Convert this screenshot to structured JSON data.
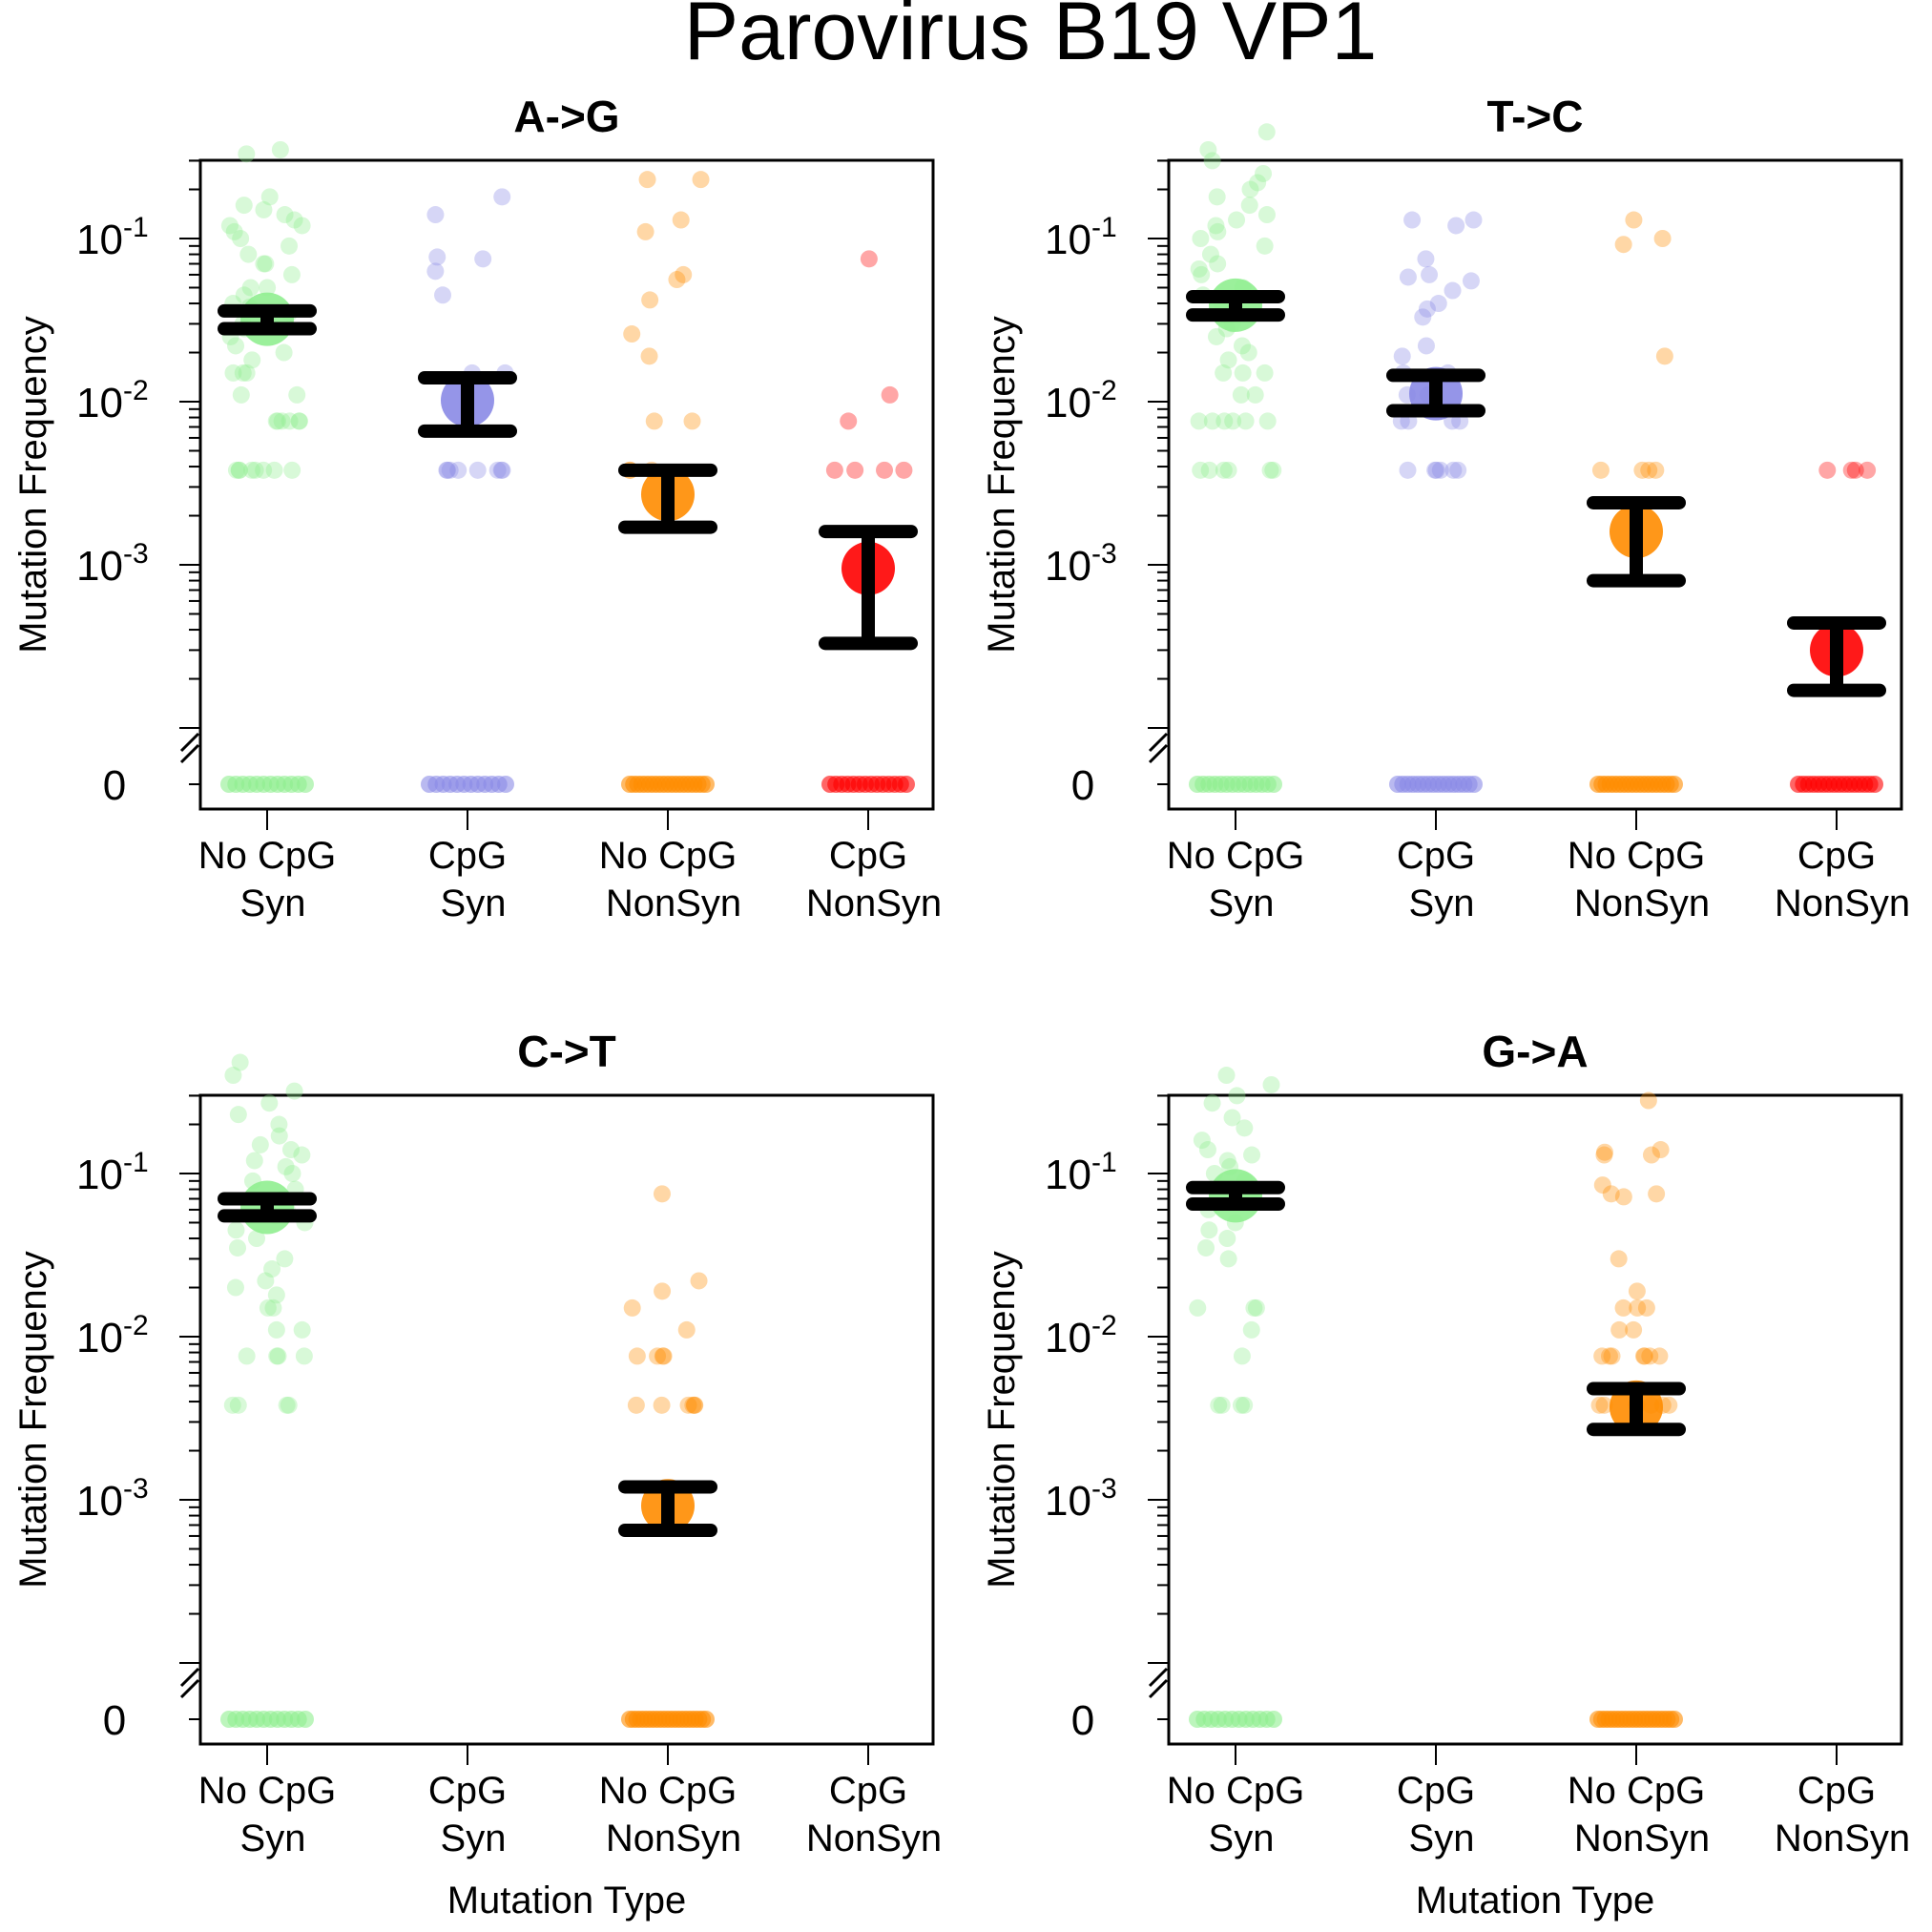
{
  "figure": {
    "title": "Parovirus B19 VP1"
  },
  "chart_data": [
    {
      "type": "scatter",
      "title": "A->G",
      "xlabel": "",
      "ylabel": "Mutation Frequency",
      "yscale": "log",
      "ylim": [
        0.0002,
        0.7
      ],
      "zero_row": "0",
      "y_ticks": [
        {
          "base": "10",
          "exp": "-1"
        },
        {
          "base": "10",
          "exp": "-2"
        },
        {
          "base": "10",
          "exp": "-3"
        }
      ],
      "categories": [
        [
          "No CpG",
          "Syn"
        ],
        [
          "CpG",
          "Syn"
        ],
        [
          "No CpG",
          "NonSyn"
        ],
        [
          "CpG",
          "NonSyn"
        ]
      ],
      "series": [
        {
          "category": 0,
          "color": "#90ee90",
          "mean": 0.032,
          "ci": [
            0.028,
            0.036
          ],
          "points": [
            0.35,
            0.33,
            0.18,
            0.16,
            0.15,
            0.14,
            0.13,
            0.12,
            0.12,
            0.11,
            0.1,
            0.09,
            0.08,
            0.07,
            0.07,
            0.06,
            0.05,
            0.05,
            0.045,
            0.04,
            0.038,
            0.035,
            0.03,
            0.028,
            0.025,
            0.022,
            0.02,
            0.018,
            0.015,
            0.015,
            0.015,
            0.011,
            0.011,
            0.0076,
            0.0076,
            0.0076,
            0.0076,
            0.0076,
            0.0076,
            0.0038,
            0.0038,
            0.0038,
            0.0038,
            0.0038,
            0.0038,
            0.0038,
            0.0038
          ],
          "zeros": 12
        },
        {
          "category": 1,
          "color": "#8a8ae6",
          "mean": 0.0102,
          "ci": [
            0.0066,
            0.014
          ],
          "points": [
            0.18,
            0.14,
            0.077,
            0.075,
            0.063,
            0.045,
            0.015,
            0.015,
            0.0038,
            0.0038,
            0.0038,
            0.0038,
            0.0038,
            0.0038,
            0.0038,
            0.0038
          ],
          "zeros": 12
        },
        {
          "category": 2,
          "color": "#ff8c00",
          "mean": 0.0027,
          "ci": [
            0.0017,
            0.0038
          ],
          "points": [
            0.23,
            0.23,
            0.13,
            0.11,
            0.06,
            0.056,
            0.042,
            0.026,
            0.019,
            0.0076,
            0.0076,
            0.0038,
            0.0038,
            0.0038
          ],
          "zeros": 20
        },
        {
          "category": 3,
          "color": "#ff0000",
          "mean": 0.00095,
          "ci": [
            0.00033,
            0.0016
          ],
          "points": [
            0.075,
            0.011,
            0.0076,
            0.0038,
            0.0038,
            0.0038,
            0.0038
          ],
          "zeros": 14
        }
      ]
    },
    {
      "type": "scatter",
      "title": "T->C",
      "xlabel": "",
      "ylabel": "Mutation Frequency",
      "yscale": "log",
      "ylim": [
        0.0002,
        0.7
      ],
      "zero_row": "0",
      "y_ticks": [
        {
          "base": "10",
          "exp": "-1"
        },
        {
          "base": "10",
          "exp": "-2"
        },
        {
          "base": "10",
          "exp": "-3"
        }
      ],
      "categories": [
        [
          "No CpG",
          "Syn"
        ],
        [
          "CpG",
          "Syn"
        ],
        [
          "No CpG",
          "NonSyn"
        ],
        [
          "CpG",
          "NonSyn"
        ]
      ],
      "series": [
        {
          "category": 0,
          "color": "#90ee90",
          "mean": 0.039,
          "ci": [
            0.034,
            0.044
          ],
          "points": [
            0.45,
            0.35,
            0.3,
            0.25,
            0.22,
            0.2,
            0.18,
            0.16,
            0.14,
            0.13,
            0.12,
            0.11,
            0.1,
            0.09,
            0.08,
            0.07,
            0.065,
            0.06,
            0.05,
            0.045,
            0.04,
            0.035,
            0.03,
            0.028,
            0.025,
            0.022,
            0.02,
            0.018,
            0.015,
            0.015,
            0.015,
            0.011,
            0.011,
            0.0076,
            0.0076,
            0.0076,
            0.0076,
            0.0076,
            0.0076,
            0.0038,
            0.0038,
            0.0038,
            0.0038,
            0.0038,
            0.0038
          ],
          "zeros": 14
        },
        {
          "category": 1,
          "color": "#8a8ae6",
          "mean": 0.0112,
          "ci": [
            0.0088,
            0.0145
          ],
          "points": [
            0.13,
            0.13,
            0.12,
            0.075,
            0.06,
            0.058,
            0.055,
            0.048,
            0.04,
            0.037,
            0.033,
            0.022,
            0.019,
            0.015,
            0.015,
            0.011,
            0.011,
            0.0076,
            0.0076,
            0.0076,
            0.0076,
            0.0038,
            0.0038,
            0.0038,
            0.0038,
            0.0038,
            0.0038
          ],
          "zeros": 16
        },
        {
          "category": 2,
          "color": "#ff8c00",
          "mean": 0.0016,
          "ci": [
            0.0008,
            0.0024
          ],
          "points": [
            0.13,
            0.1,
            0.092,
            0.019,
            0.0038,
            0.0038,
            0.0038,
            0.0038
          ],
          "zeros": 20
        },
        {
          "category": 3,
          "color": "#ff0000",
          "mean": 0.0003,
          "ci": [
            0.00017,
            0.00044
          ],
          "points": [
            0.0038,
            0.0038,
            0.0038,
            0.0038
          ],
          "zeros": 16
        }
      ]
    },
    {
      "type": "scatter",
      "title": "C->T",
      "xlabel": "Mutation Type",
      "ylabel": "Mutation Frequency",
      "yscale": "log",
      "ylim": [
        0.0002,
        0.7
      ],
      "zero_row": "0",
      "y_ticks": [
        {
          "base": "10",
          "exp": "-1"
        },
        {
          "base": "10",
          "exp": "-2"
        },
        {
          "base": "10",
          "exp": "-3"
        }
      ],
      "categories": [
        [
          "No CpG",
          "Syn"
        ],
        [
          "CpG",
          "Syn"
        ],
        [
          "No CpG",
          "NonSyn"
        ],
        [
          "CpG",
          "NonSyn"
        ]
      ],
      "series": [
        {
          "category": 0,
          "color": "#90ee90",
          "mean": 0.062,
          "ci": [
            0.055,
            0.07
          ],
          "points": [
            0.48,
            0.4,
            0.32,
            0.27,
            0.23,
            0.2,
            0.17,
            0.15,
            0.14,
            0.13,
            0.12,
            0.11,
            0.1,
            0.09,
            0.08,
            0.07,
            0.06,
            0.055,
            0.05,
            0.045,
            0.04,
            0.035,
            0.03,
            0.026,
            0.022,
            0.02,
            0.018,
            0.015,
            0.015,
            0.011,
            0.011,
            0.0076,
            0.0076,
            0.0076,
            0.0076,
            0.0038,
            0.0038,
            0.0038,
            0.0038
          ],
          "zeros": 12
        },
        {
          "category": 2,
          "color": "#ff8c00",
          "mean": 0.00092,
          "ci": [
            0.00065,
            0.0012
          ],
          "points": [
            0.075,
            0.022,
            0.019,
            0.015,
            0.011,
            0.0076,
            0.0076,
            0.0076,
            0.0076,
            0.0038,
            0.0038,
            0.0038,
            0.0038,
            0.0038,
            0.0038
          ],
          "zeros": 22
        }
      ]
    },
    {
      "type": "scatter",
      "title": "G->A",
      "xlabel": "Mutation Type",
      "ylabel": "Mutation Frequency",
      "yscale": "log",
      "ylim": [
        0.0002,
        0.7
      ],
      "zero_row": "0",
      "y_ticks": [
        {
          "base": "10",
          "exp": "-1"
        },
        {
          "base": "10",
          "exp": "-2"
        },
        {
          "base": "10",
          "exp": "-3"
        }
      ],
      "categories": [
        [
          "No CpG",
          "Syn"
        ],
        [
          "CpG",
          "Syn"
        ],
        [
          "No CpG",
          "NonSyn"
        ],
        [
          "CpG",
          "NonSyn"
        ]
      ],
      "series": [
        {
          "category": 0,
          "color": "#90ee90",
          "mean": 0.073,
          "ci": [
            0.065,
            0.082
          ],
          "points": [
            0.4,
            0.35,
            0.3,
            0.27,
            0.22,
            0.19,
            0.16,
            0.14,
            0.13,
            0.12,
            0.11,
            0.1,
            0.09,
            0.08,
            0.07,
            0.06,
            0.05,
            0.045,
            0.04,
            0.035,
            0.03,
            0.015,
            0.015,
            0.015,
            0.011,
            0.0076,
            0.0038,
            0.0038,
            0.0038,
            0.0038
          ],
          "zeros": 12
        },
        {
          "category": 2,
          "color": "#ff8c00",
          "mean": 0.0037,
          "ci": [
            0.0027,
            0.0048
          ],
          "points": [
            0.28,
            0.14,
            0.135,
            0.13,
            0.13,
            0.085,
            0.075,
            0.075,
            0.072,
            0.03,
            0.019,
            0.015,
            0.015,
            0.015,
            0.011,
            0.011,
            0.0076,
            0.0076,
            0.0076,
            0.0076,
            0.0076,
            0.0076,
            0.0076,
            0.0038,
            0.0038,
            0.0038,
            0.0038,
            0.0038,
            0.0038
          ],
          "zeros": 22
        }
      ]
    }
  ]
}
